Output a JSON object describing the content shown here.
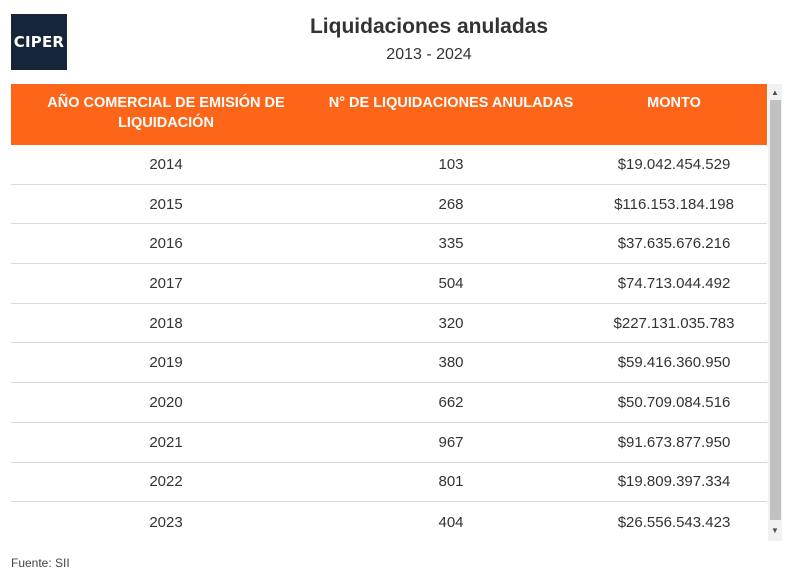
{
  "logo": {
    "text": "CIPER"
  },
  "header": {
    "title": "Liquidaciones anuladas",
    "subtitle": "2013 - 2024"
  },
  "table": {
    "columns": [
      "AÑO COMERCIAL DE EMISIÓN DE LIQUIDACIÓN",
      "N° DE LIQUIDACIONES ANULADAS",
      "MONTO"
    ],
    "rows": [
      {
        "year": "2014",
        "count": "103",
        "amount": "$19.042.454.529"
      },
      {
        "year": "2015",
        "count": "268",
        "amount": "$116.153.184.198"
      },
      {
        "year": "2016",
        "count": "335",
        "amount": "$37.635.676.216"
      },
      {
        "year": "2017",
        "count": "504",
        "amount": "$74.713.044.492"
      },
      {
        "year": "2018",
        "count": "320",
        "amount": "$227.131.035.783"
      },
      {
        "year": "2019",
        "count": "380",
        "amount": "$59.416.360.950"
      },
      {
        "year": "2020",
        "count": "662",
        "amount": "$50.709.084.516"
      },
      {
        "year": "2021",
        "count": "967",
        "amount": "$91.673.877.950"
      },
      {
        "year": "2022",
        "count": "801",
        "amount": "$19.809.397.334"
      },
      {
        "year": "2023",
        "count": "404",
        "amount": "$26.556.543.423"
      }
    ]
  },
  "scrollbar": {
    "up_icon": "▲",
    "down_icon": "▼"
  },
  "footer": {
    "source": "Fuente: SII"
  },
  "colors": {
    "header_bg": "#fd6619",
    "logo_bg": "#15263a"
  }
}
